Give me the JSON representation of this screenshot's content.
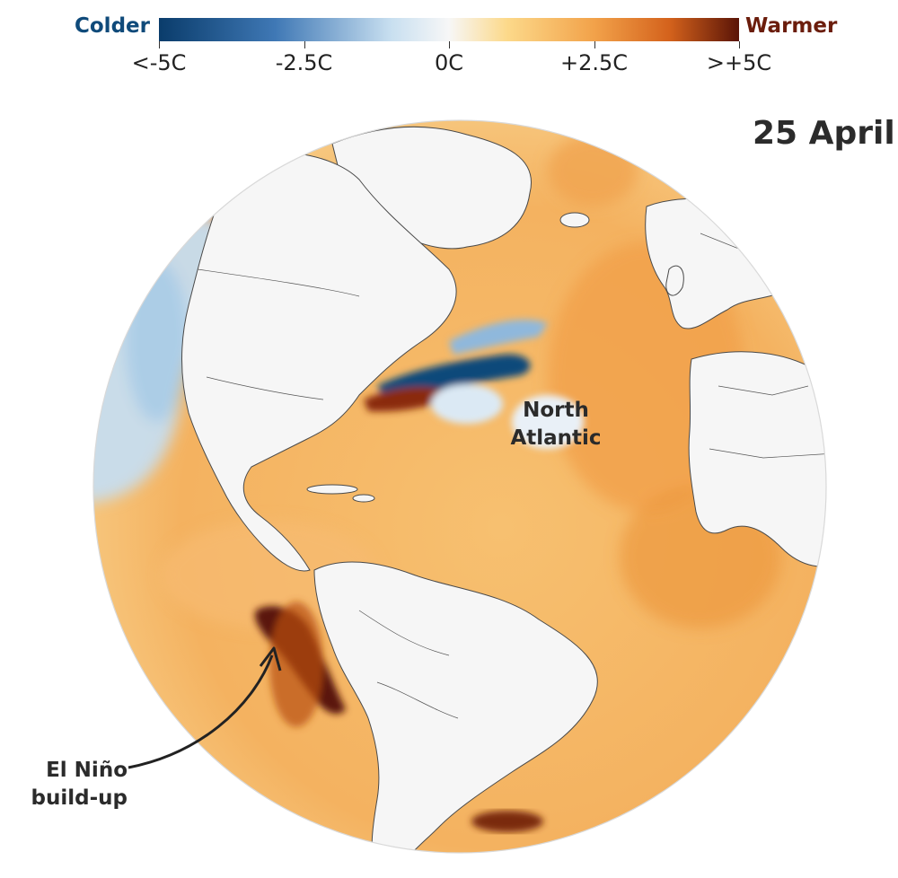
{
  "legend": {
    "colder_label": "Colder",
    "warmer_label": "Warmer",
    "ticks": [
      "<-5C",
      "-2.5C",
      "0C",
      "+2.5C",
      ">+5C"
    ],
    "colors": {
      "deep_blue": "#0a3c6b",
      "blue": "#3f78b5",
      "light_blue": "#c8dff0",
      "neutral": "#f7f7f7",
      "light_orange": "#fcd98a",
      "orange": "#f2a24a",
      "dark_orange": "#d4621c",
      "deep_red": "#5a1407"
    },
    "colder_color": "#0f4a7a",
    "warmer_color": "#6b1d0c"
  },
  "date": "25 April",
  "annotations": {
    "north_atlantic": [
      "North",
      "Atlantic"
    ],
    "el_nino": [
      "El Niño",
      "build-up"
    ]
  }
}
